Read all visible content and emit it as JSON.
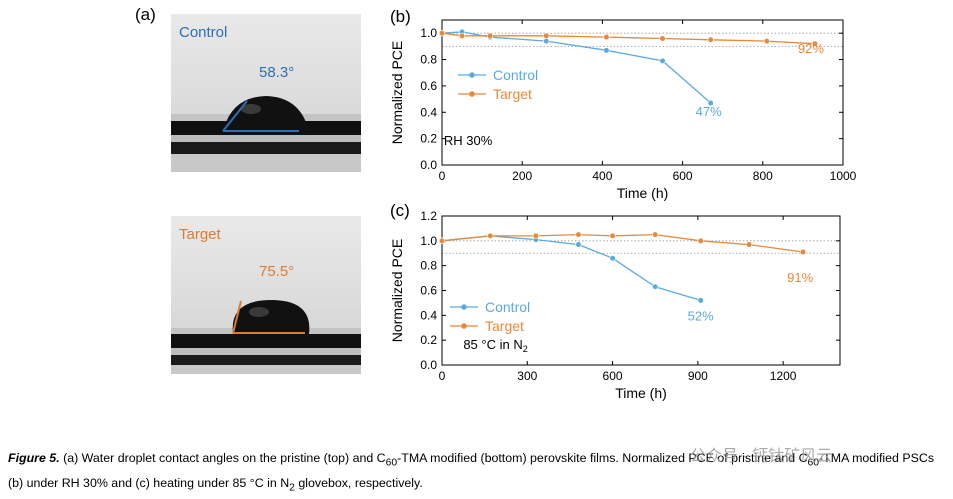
{
  "panel_a": {
    "letter": "(a)",
    "control": {
      "label": "Control",
      "angle": "58.3°",
      "angle_deg": 58.3,
      "color": "#2f6db5"
    },
    "target": {
      "label": "Target",
      "angle": "75.5°",
      "angle_deg": 75.5,
      "color": "#e07b2a"
    }
  },
  "chart_data": [
    {
      "type": "line",
      "panel": "(b)",
      "xlabel": "Time (h)",
      "ylabel": "Normalized PCE",
      "xlim": [
        0,
        1000
      ],
      "ylim": [
        0.0,
        1.1
      ],
      "xticks": [
        0,
        200,
        400,
        600,
        800,
        1000
      ],
      "yticks": [
        0.0,
        0.2,
        0.4,
        0.6,
        0.8,
        1.0
      ],
      "yticklabels": [
        "0.0",
        "0.2",
        "0.4",
        "0.6",
        "0.8",
        "1.0"
      ],
      "series": [
        {
          "name": "Control",
          "color": "#5aaadd",
          "x": [
            0,
            50,
            120,
            260,
            410,
            550,
            670
          ],
          "y": [
            1.0,
            1.01,
            0.97,
            0.94,
            0.87,
            0.79,
            0.47
          ]
        },
        {
          "name": "Target",
          "color": "#e8883a",
          "x": [
            0,
            50,
            120,
            260,
            410,
            550,
            670,
            810,
            930
          ],
          "y": [
            1.0,
            0.98,
            0.98,
            0.98,
            0.97,
            0.96,
            0.95,
            0.94,
            0.92
          ]
        }
      ],
      "annotations": [
        {
          "text": "47%",
          "x": 665,
          "y": 0.37,
          "color": "#5aaadd"
        },
        {
          "text": "92%",
          "x": 920,
          "y": 0.85,
          "color": "#e8883a"
        },
        {
          "text": "RH 30%",
          "x": 65,
          "y": 0.15,
          "color": "#000000"
        }
      ],
      "legend_position": "middle-left",
      "dotted_reference_lines": [
        1.0,
        0.9
      ]
    },
    {
      "type": "line",
      "panel": "(c)",
      "xlabel": "Time (h)",
      "ylabel": "Normalized PCE",
      "xlim": [
        0,
        1400
      ],
      "ylim": [
        0.0,
        1.2
      ],
      "xticks": [
        0,
        300,
        600,
        900,
        1200
      ],
      "yticks": [
        0.0,
        0.2,
        0.4,
        0.6,
        0.8,
        1.0,
        1.2
      ],
      "yticklabels": [
        "0.0",
        "0.2",
        "0.4",
        "0.6",
        "0.8",
        "1.0",
        "1.2"
      ],
      "series": [
        {
          "name": "Control",
          "color": "#5aaadd",
          "x": [
            0,
            170,
            330,
            480,
            600,
            750,
            910
          ],
          "y": [
            1.0,
            1.04,
            1.01,
            0.97,
            0.86,
            0.63,
            0.52
          ]
        },
        {
          "name": "Target",
          "color": "#e8883a",
          "x": [
            0,
            170,
            330,
            480,
            600,
            750,
            910,
            1080,
            1270
          ],
          "y": [
            1.0,
            1.04,
            1.04,
            1.05,
            1.04,
            1.05,
            1.0,
            0.97,
            0.91
          ]
        }
      ],
      "annotations": [
        {
          "text": "52%",
          "x": 910,
          "y": 0.36,
          "color": "#5aaadd"
        },
        {
          "text": "91%",
          "x": 1260,
          "y": 0.67,
          "color": "#e8883a"
        },
        {
          "text": "85 °C in N",
          "sub": "2",
          "x": 75,
          "y": 0.13,
          "color": "#000000"
        }
      ],
      "legend_position": "lower-left",
      "dotted_reference_lines": [
        1.0,
        0.9
      ]
    }
  ],
  "caption": {
    "label": "Figure 5.",
    "t1": " (a) Water droplet contact angles on the pristine (top) and C",
    "s1": "60",
    "t2": "-TMA modified (bottom) perovskite films. Normalized PCE of pristine and C",
    "s2": "60",
    "t3": "-TMA modified PSCs (b) under RH 30% and (c) heating under 85 °C in N",
    "s3": "2",
    "t4": " glovebox, respectively."
  },
  "watermark": "公众号 · 钙钛矿风云"
}
